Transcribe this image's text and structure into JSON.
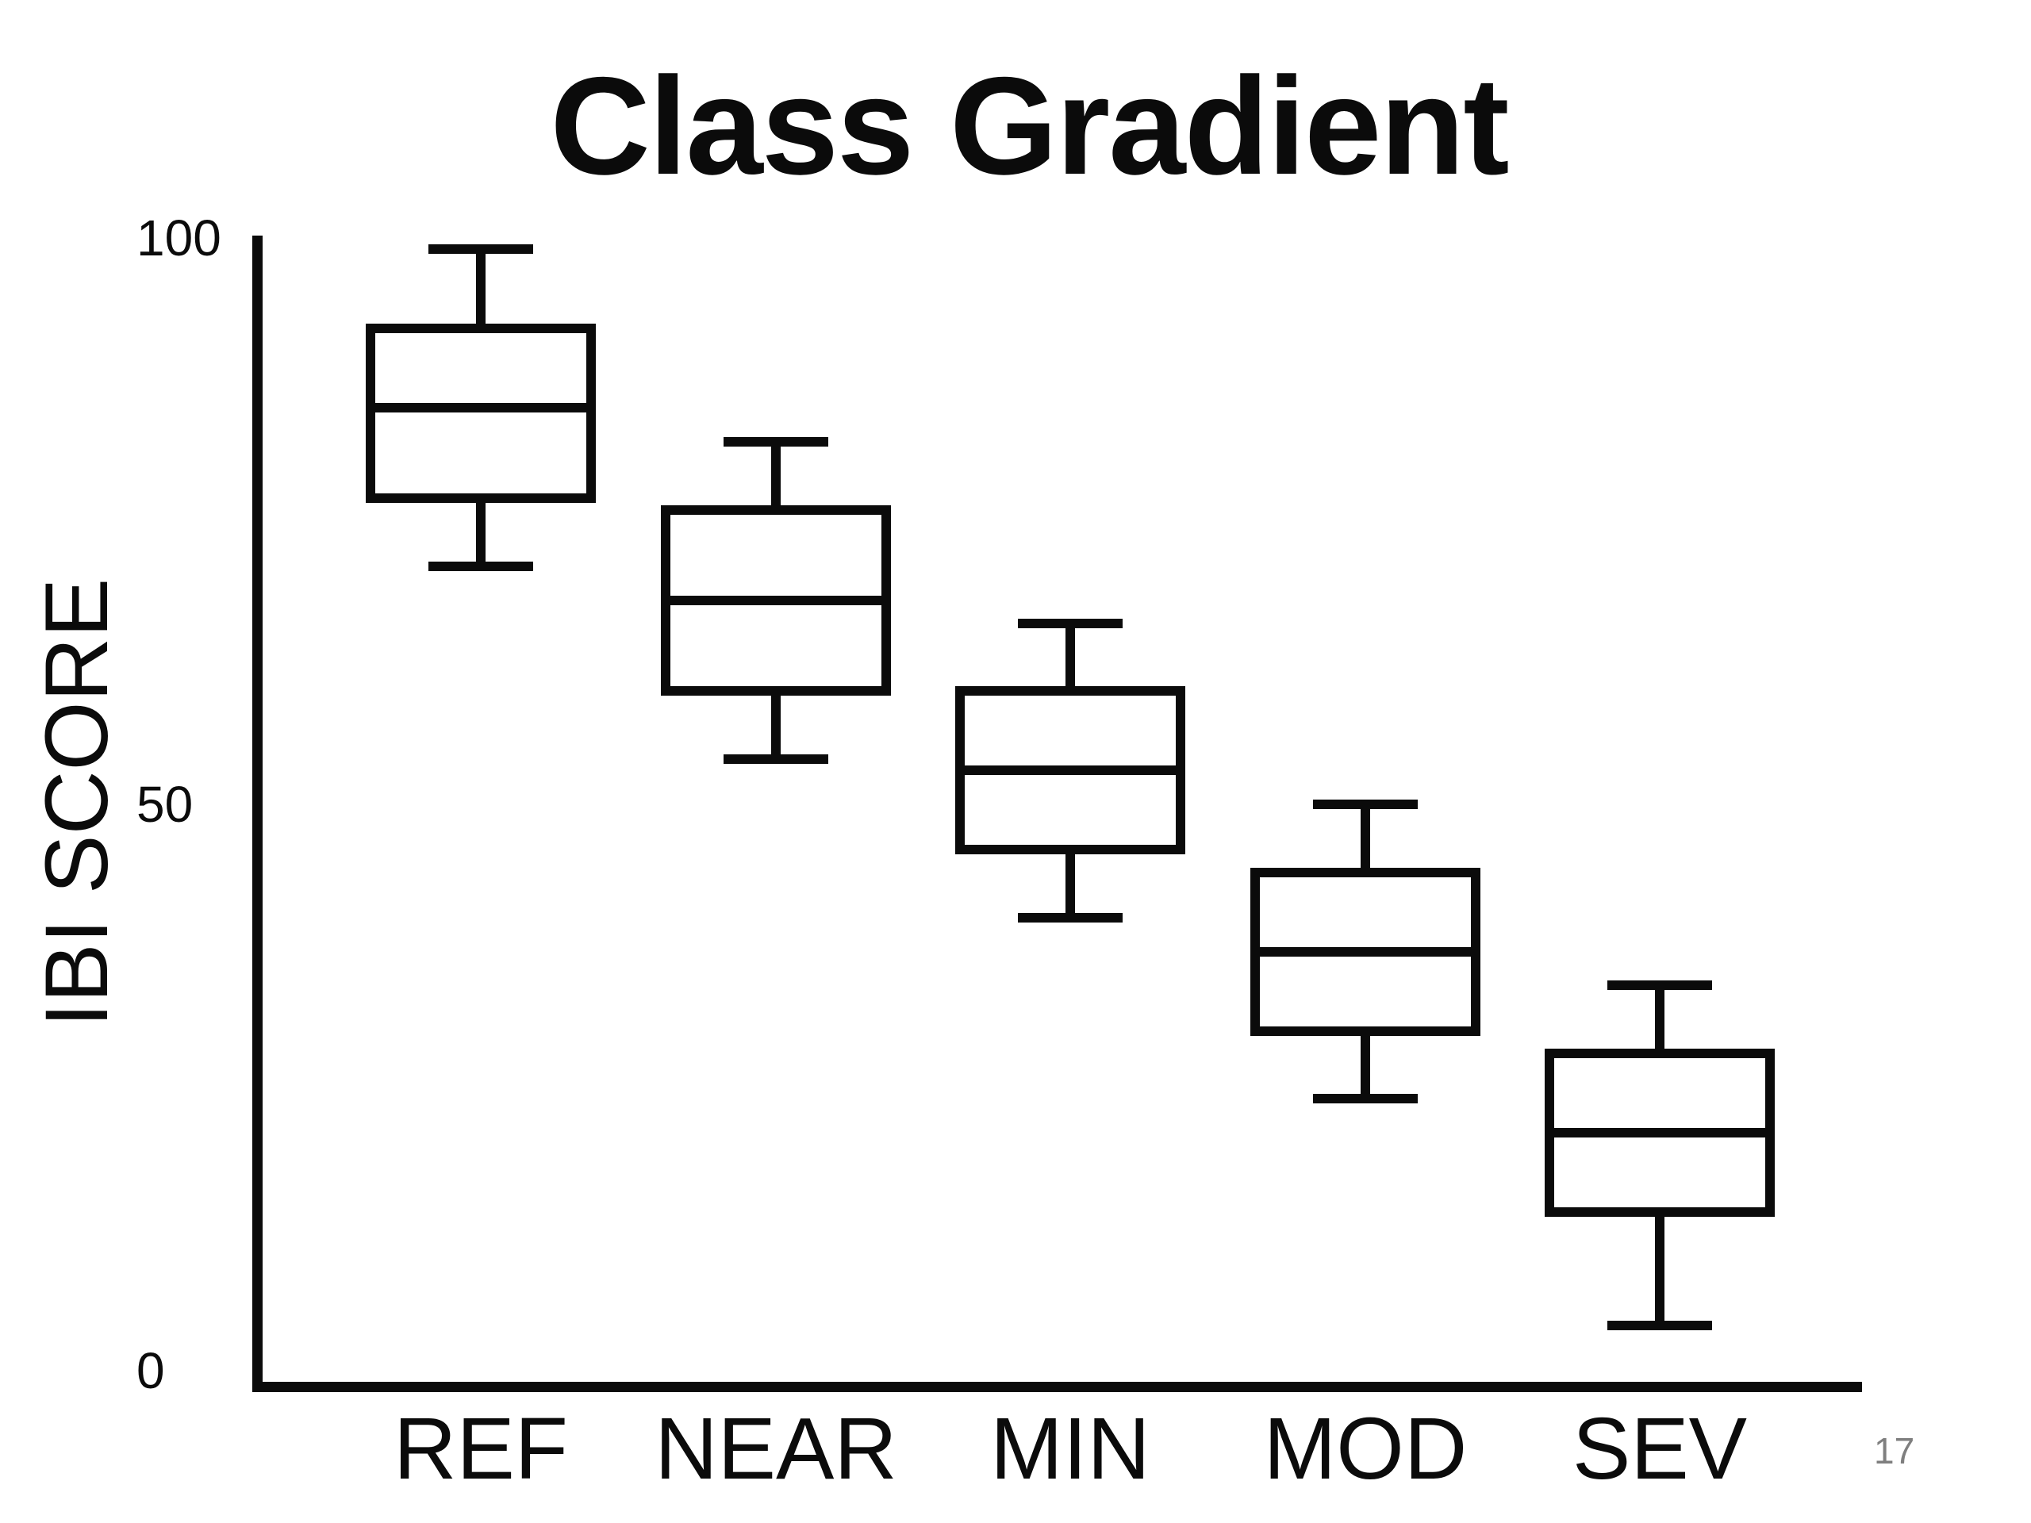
{
  "page": {
    "page_number": "17",
    "background_color": "#ffffff"
  },
  "chart_data": {
    "type": "boxplot",
    "title": "Class Gradient",
    "xlabel": "",
    "ylabel": "IBI SCORE",
    "ylim": [
      0,
      100
    ],
    "yticks": [
      100,
      50,
      0
    ],
    "ytick_labels": [
      "100",
      "50",
      "0"
    ],
    "categories": [
      "REF",
      "NEAR",
      "MIN",
      "MOD",
      "SEV"
    ],
    "series": [
      {
        "name": "REF",
        "min": 71,
        "q1": 77,
        "median": 85,
        "q3": 92,
        "max": 99
      },
      {
        "name": "NEAR",
        "min": 54,
        "q1": 60,
        "median": 68,
        "q3": 76,
        "max": 82
      },
      {
        "name": "MIN",
        "min": 40,
        "q1": 46,
        "median": 53,
        "q3": 60,
        "max": 66
      },
      {
        "name": "MOD",
        "min": 24,
        "q1": 30,
        "median": 37,
        "q3": 44,
        "max": 50
      },
      {
        "name": "SEV",
        "min": 4,
        "q1": 14,
        "median": 21,
        "q3": 28,
        "max": 34
      }
    ],
    "grid": false,
    "legend": null,
    "colors": {
      "stroke": "#0b0b0b",
      "box_fill": "#ffffff",
      "page_number": "#7f7f7f"
    }
  }
}
